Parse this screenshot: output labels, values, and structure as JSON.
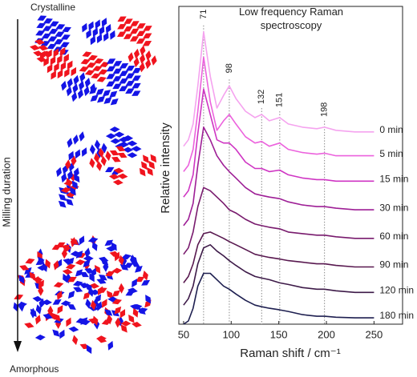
{
  "schematic": {
    "top_label": "Crystalline",
    "axis_label": "Milling duration",
    "bottom_label": "Amorphous"
  },
  "chart_data": {
    "type": "line",
    "title": "Low frequency Raman spectroscopy",
    "xlabel": "Raman shift / cm⁻¹",
    "ylabel": "Relative intensity",
    "xlim": [
      45,
      280
    ],
    "ylim": [
      0,
      100
    ],
    "xticks": [
      50,
      100,
      150,
      200,
      250
    ],
    "peaks": [
      71,
      98,
      132,
      151,
      198
    ],
    "x": [
      50,
      55,
      60,
      65,
      71,
      78,
      85,
      92,
      98,
      105,
      115,
      125,
      132,
      140,
      151,
      160,
      175,
      190,
      198,
      210,
      230,
      250
    ],
    "series": [
      {
        "name": "0 min",
        "color": "#f5a3ef",
        "values": [
          56,
          58,
          63,
          75,
          92,
          78,
          68,
          72,
          75,
          71,
          67,
          65,
          66,
          64,
          65,
          63,
          62,
          61.5,
          62,
          61,
          60.5,
          60.5
        ]
      },
      {
        "name": "5 min",
        "color": "#ec62dd",
        "values": [
          48,
          50,
          55,
          67,
          84,
          70,
          61,
          64,
          66,
          63,
          59,
          57,
          57.5,
          56,
          57,
          55,
          54,
          53.5,
          53.8,
          53,
          53,
          53
        ]
      },
      {
        "name": "15 min",
        "color": "#cf35c3",
        "values": [
          40,
          42,
          47,
          60,
          74,
          66,
          58,
          57,
          57,
          55,
          51,
          49,
          49,
          48,
          48.5,
          47,
          46,
          45.5,
          45.5,
          45,
          45,
          45
        ]
      },
      {
        "name": "30 min",
        "color": "#9e1f96",
        "values": [
          31,
          33,
          38,
          50,
          62,
          58,
          53,
          50,
          48,
          46,
          43,
          41,
          40.5,
          40,
          39.5,
          38.5,
          37.5,
          37,
          37,
          36.5,
          36,
          36
        ]
      },
      {
        "name": "60 min",
        "color": "#781a6d",
        "values": [
          22,
          24,
          29,
          37,
          43,
          42,
          40,
          38,
          36,
          35,
          33,
          31.5,
          31,
          30.5,
          30,
          29,
          28.5,
          28,
          28,
          27.5,
          27,
          27
        ]
      },
      {
        "name": "90 min",
        "color": "#58184f",
        "values": [
          13,
          15,
          19,
          25,
          28.5,
          29,
          28,
          27,
          26,
          25,
          23.5,
          22,
          21.5,
          21,
          20.5,
          20,
          19.5,
          19,
          19,
          18.5,
          18,
          18
        ]
      },
      {
        "name": "120 min",
        "color": "#3d1a48",
        "values": [
          6,
          8,
          12,
          19,
          24,
          25,
          23,
          21.5,
          20,
          18.5,
          16.5,
          15,
          14.5,
          14,
          13,
          12.5,
          11.5,
          11,
          11,
          10.5,
          10,
          10
        ]
      },
      {
        "name": "180 min",
        "color": "#1e1f50",
        "values": [
          0,
          1,
          5,
          12,
          16,
          16,
          14,
          12,
          11,
          9.5,
          7.5,
          6,
          5.5,
          5,
          4.5,
          4,
          3,
          2.5,
          2.5,
          2.2,
          2,
          2
        ]
      }
    ]
  }
}
